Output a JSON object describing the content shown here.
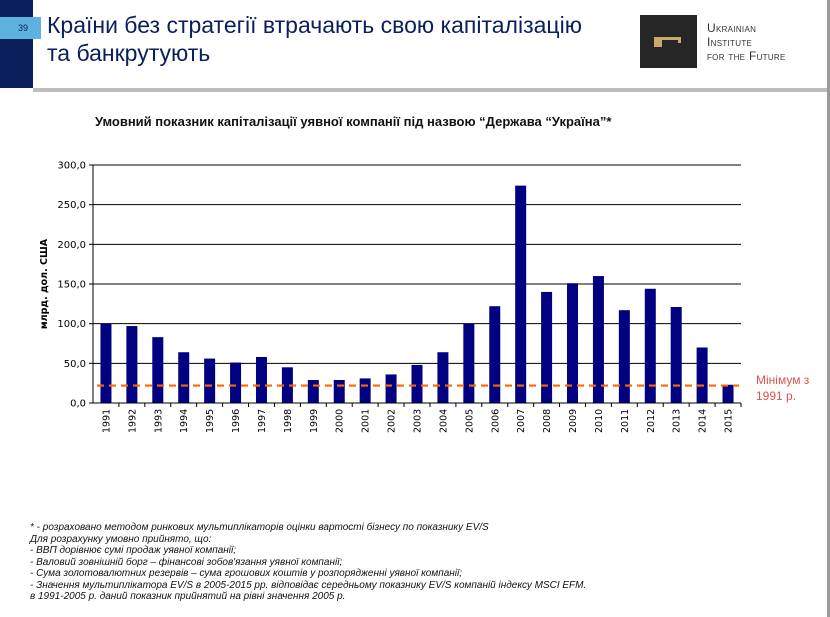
{
  "page_number": "39",
  "header": {
    "title_line1": "Країни без стратегії втрачають свою капіталізацію",
    "title_line2": "та банкрутують",
    "logo_lines": [
      "Ukrainian",
      "Institute",
      "for the Future"
    ]
  },
  "colors": {
    "bar": "#000080",
    "min_line": "#ff6600",
    "min_label": "#d9534f",
    "title": "#0a1f5c",
    "nav": "#0a1f5c",
    "tab": "#5fb2e0"
  },
  "chart_data": {
    "type": "bar",
    "title": "Умовний показник капіталізації уявної компанії під назвою “Держава “Україна”*",
    "ylabel": "млрд. дол. США",
    "xlabel": "",
    "ylim": [
      0,
      300
    ],
    "yticks": [
      "0,0",
      "50,0",
      "100,0",
      "150,0",
      "200,0",
      "250,0",
      "300,0"
    ],
    "grid": true,
    "categories": [
      "1991",
      "1992",
      "1993",
      "1994",
      "1995",
      "1996",
      "1997",
      "1998",
      "1999",
      "2000",
      "2001",
      "2002",
      "2003",
      "2004",
      "2005",
      "2006",
      "2007",
      "2008",
      "2009",
      "2010",
      "2011",
      "2012",
      "2013",
      "2014",
      "2015"
    ],
    "values": [
      100,
      97,
      83,
      64,
      56,
      51,
      58,
      45,
      29,
      29,
      31,
      36,
      48,
      64,
      100,
      122,
      274,
      140,
      151,
      160,
      117,
      144,
      121,
      70,
      23
    ],
    "reference_line": {
      "value": 22,
      "label_line1": "Мінімум з",
      "label_line2": "1991 р.",
      "style": "dashed"
    }
  },
  "notes": [
    "* - розраховано методом ринкових мультиплікаторів оцінки вартості бізнесу по показнику EV/S",
    "Для розрахунку умовно прийнято, що:",
    "- ВВП дорівнює сумі продаж уявної компанії;",
    "- Валовий зовнішній борг – фінансові зобов'язання уявної компанії;",
    "- Сума золотовалютних резервів – сума грошових коштів у розпорядженні уявної компанії;",
    "- Значення мультиплікатора EV/S в 2005-2015 рр. відповідає середньому показнику EV/S компаній індексу MSCI EFM.",
    "в 1991-2005 р. даний показник прийнятий на рівні значення 2005 р."
  ]
}
